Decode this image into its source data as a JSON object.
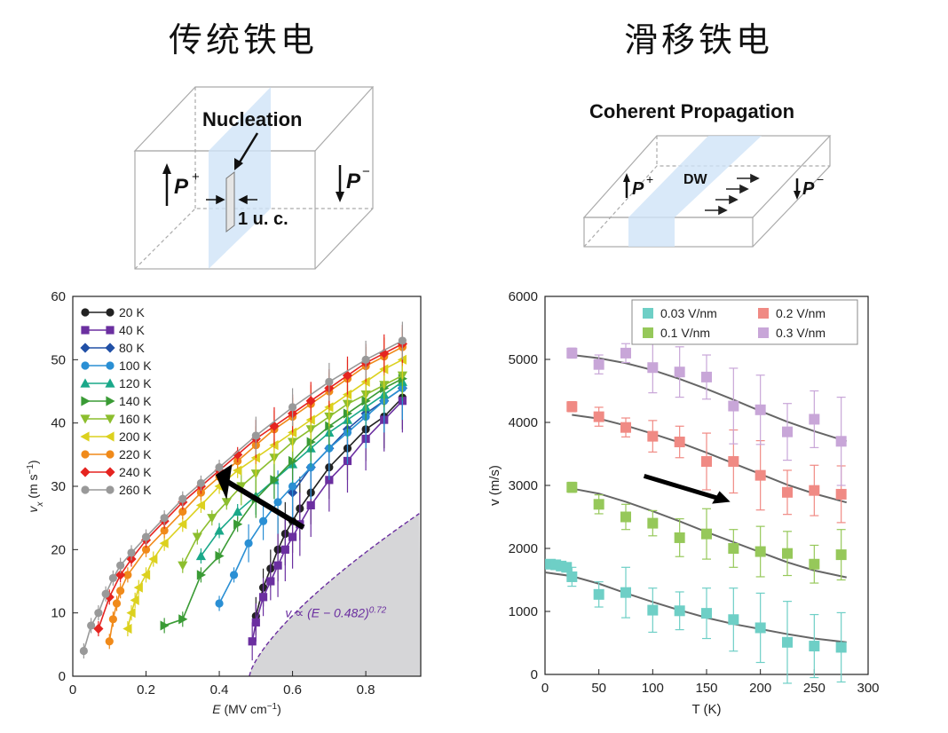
{
  "titles": {
    "left": "传统铁电",
    "right": "滑移铁电"
  },
  "schematic_left": {
    "heading": "Nucleation",
    "p_plus": "P",
    "p_plus_sup": "+",
    "p_minus": "P",
    "p_minus_sup": "−",
    "width_label": "1 u. c."
  },
  "schematic_right": {
    "heading": "Coherent Propagation",
    "p_plus": "P",
    "p_plus_sup": "+",
    "p_minus": "P",
    "p_minus_sup": "−",
    "dw_label": "DW"
  },
  "chart_data": [
    {
      "type": "line",
      "xlabel_main": "E",
      "xlabel_unit": " (MV cm",
      "xlabel_exp": "−1",
      "xlabel_close": ")",
      "ylabel_main": "v",
      "ylabel_sub": "x",
      "ylabel_unit": " (m s",
      "ylabel_exp": "−1",
      "ylabel_close": ")",
      "xlim": [
        0,
        0.95
      ],
      "ylim": [
        0,
        60
      ],
      "xticks": [
        0,
        0.2,
        0.4,
        0.6,
        0.8
      ],
      "xtick_labels": [
        "0",
        "0.2",
        "0.4",
        "0.6",
        "0.8"
      ],
      "yticks": [
        0,
        10,
        20,
        30,
        40,
        50,
        60
      ],
      "fit_label": "v ∝ (E − 0.482)",
      "fit_exp": "0.72",
      "legend_position": "top-left",
      "series": [
        {
          "name": "20 K",
          "color": "#222222",
          "marker": "circle",
          "x": [
            0.5,
            0.52,
            0.54,
            0.56,
            0.58,
            0.6,
            0.62,
            0.65,
            0.7,
            0.75,
            0.8,
            0.85,
            0.9
          ],
          "y": [
            9.5,
            14,
            17,
            20,
            22.5,
            24.5,
            26.5,
            29,
            33,
            36,
            39,
            41,
            44
          ]
        },
        {
          "name": "40 K",
          "color": "#6b2fa0",
          "marker": "square",
          "x": [
            0.49,
            0.5,
            0.52,
            0.54,
            0.56,
            0.58,
            0.6,
            0.62,
            0.65,
            0.7,
            0.75,
            0.8,
            0.85,
            0.9
          ],
          "y": [
            5.5,
            8.5,
            12.5,
            15,
            17.5,
            20,
            22,
            24,
            27,
            31,
            34,
            37.5,
            40.5,
            43.5
          ]
        },
        {
          "name": "80 K",
          "color": "#2150a6",
          "marker": "diamond",
          "x": [
            0.6,
            0.65,
            0.7,
            0.75,
            0.8,
            0.85,
            0.9
          ],
          "y": [
            29,
            33,
            36,
            39,
            41.5,
            43.5,
            45.5
          ]
        },
        {
          "name": "100 K",
          "color": "#2a8fd4",
          "marker": "circle",
          "x": [
            0.4,
            0.44,
            0.48,
            0.52,
            0.56,
            0.6,
            0.65,
            0.7,
            0.75,
            0.8,
            0.85,
            0.9
          ],
          "y": [
            11.5,
            16,
            21,
            24.5,
            27.5,
            30,
            33,
            36,
            38.5,
            41,
            43.5,
            45.5
          ]
        },
        {
          "name": "120 K",
          "color": "#1aa889",
          "marker": "triangle-up",
          "x": [
            0.35,
            0.4,
            0.45,
            0.5,
            0.55,
            0.6,
            0.65,
            0.7,
            0.75,
            0.8,
            0.85,
            0.9
          ],
          "y": [
            19,
            23,
            26,
            28.5,
            31,
            33.5,
            36,
            38.5,
            40.5,
            42.5,
            44.5,
            46.5
          ]
        },
        {
          "name": "140 K",
          "color": "#3a9b35",
          "marker": "triangle-right",
          "x": [
            0.25,
            0.3,
            0.35,
            0.4,
            0.45,
            0.5,
            0.55,
            0.6,
            0.65,
            0.7,
            0.75,
            0.8,
            0.85,
            0.9
          ],
          "y": [
            8,
            9,
            16,
            19,
            24,
            28,
            31,
            34,
            37,
            39.5,
            41.5,
            43.5,
            45.5,
            47
          ]
        },
        {
          "name": "160 K",
          "color": "#8cbe2e",
          "marker": "triangle-down",
          "x": [
            0.3,
            0.34,
            0.38,
            0.42,
            0.46,
            0.5,
            0.55,
            0.6,
            0.65,
            0.7,
            0.75,
            0.8,
            0.85,
            0.9
          ],
          "y": [
            17.5,
            22,
            25,
            27.5,
            30,
            32,
            34.5,
            37,
            39,
            41,
            43,
            44.5,
            46,
            47.5
          ]
        },
        {
          "name": "200 K",
          "color": "#dcd11e",
          "marker": "triangle-left",
          "x": [
            0.15,
            0.16,
            0.17,
            0.18,
            0.2,
            0.22,
            0.25,
            0.3,
            0.35,
            0.4,
            0.45,
            0.5,
            0.55,
            0.6,
            0.65,
            0.7,
            0.75,
            0.8,
            0.85,
            0.9
          ],
          "y": [
            7.5,
            10,
            12,
            14,
            16,
            18.5,
            21,
            24,
            27,
            30,
            32.5,
            34.5,
            36.5,
            38.5,
            40.5,
            42.5,
            44.5,
            46.5,
            48.5,
            50
          ]
        },
        {
          "name": "220 K",
          "color": "#f08a1a",
          "marker": "circle",
          "x": [
            0.1,
            0.11,
            0.12,
            0.13,
            0.15,
            0.2,
            0.25,
            0.3,
            0.35,
            0.4,
            0.45,
            0.5,
            0.55,
            0.6,
            0.65,
            0.7,
            0.75,
            0.8,
            0.85,
            0.9
          ],
          "y": [
            5.5,
            9,
            11.5,
            13.5,
            16,
            20,
            23,
            26,
            29,
            31.5,
            34,
            36.5,
            39,
            41,
            43,
            45,
            47,
            49,
            50.5,
            52
          ]
        },
        {
          "name": "240 K",
          "color": "#e52420",
          "marker": "diamond",
          "x": [
            0.07,
            0.1,
            0.13,
            0.16,
            0.2,
            0.25,
            0.3,
            0.35,
            0.4,
            0.45,
            0.5,
            0.55,
            0.6,
            0.65,
            0.7,
            0.75,
            0.8,
            0.85,
            0.9
          ],
          "y": [
            7.5,
            12.5,
            16,
            18.5,
            21.5,
            24.5,
            27.5,
            30,
            32.5,
            35,
            37.5,
            39.5,
            41.5,
            43.5,
            45.5,
            47.5,
            49.5,
            51,
            52.5
          ]
        },
        {
          "name": "260 K",
          "color": "#999999",
          "marker": "circle",
          "x": [
            0.03,
            0.05,
            0.07,
            0.09,
            0.11,
            0.13,
            0.16,
            0.2,
            0.25,
            0.3,
            0.35,
            0.4,
            0.5,
            0.6,
            0.7,
            0.8,
            0.9
          ],
          "y": [
            4,
            8,
            10,
            13,
            15.5,
            17.5,
            19.5,
            22,
            25,
            28,
            30.5,
            33,
            38,
            42.5,
            46.5,
            50,
            53
          ]
        }
      ]
    },
    {
      "type": "scatter",
      "xlabel": "T (K)",
      "ylabel": "v (m/s)",
      "xlim": [
        0,
        300
      ],
      "ylim": [
        0,
        6000
      ],
      "xticks": [
        0,
        50,
        100,
        150,
        200,
        250,
        300
      ],
      "yticks": [
        0,
        1000,
        2000,
        3000,
        4000,
        5000,
        6000
      ],
      "legend_position": "top-right",
      "series": [
        {
          "name": "0.03 V/nm",
          "color": "#6ecfc6",
          "x": [
            5,
            10,
            15,
            20,
            25,
            50,
            75,
            100,
            125,
            150,
            175,
            200,
            225,
            250,
            275
          ],
          "y": [
            1750,
            1740,
            1720,
            1700,
            1550,
            1270,
            1300,
            1020,
            1010,
            970,
            870,
            740,
            510,
            450,
            430
          ],
          "err": [
            60,
            60,
            60,
            60,
            150,
            200,
            400,
            350,
            300,
            400,
            500,
            550,
            650,
            500,
            550
          ],
          "fit": [
            [
              0,
              1620
            ],
            [
              25,
              1560
            ],
            [
              50,
              1440
            ],
            [
              75,
              1290
            ],
            [
              100,
              1150
            ],
            [
              125,
              1020
            ],
            [
              150,
              900
            ],
            [
              175,
              800
            ],
            [
              200,
              720
            ],
            [
              225,
              640
            ],
            [
              250,
              570
            ],
            [
              280,
              510
            ]
          ]
        },
        {
          "name": "0.1 V/nm",
          "color": "#96c85a",
          "x": [
            25,
            50,
            75,
            100,
            125,
            150,
            175,
            200,
            225,
            250,
            275
          ],
          "y": [
            2970,
            2700,
            2500,
            2400,
            2170,
            2230,
            2000,
            1950,
            1920,
            1750,
            1900
          ],
          "err": [
            80,
            150,
            200,
            200,
            300,
            400,
            300,
            400,
            350,
            300,
            400
          ],
          "fit": [
            [
              25,
              2950
            ],
            [
              50,
              2870
            ],
            [
              75,
              2740
            ],
            [
              100,
              2590
            ],
            [
              125,
              2430
            ],
            [
              150,
              2260
            ],
            [
              175,
              2100
            ],
            [
              200,
              1940
            ],
            [
              225,
              1780
            ],
            [
              250,
              1650
            ],
            [
              280,
              1540
            ]
          ]
        },
        {
          "name": "0.2 V/nm",
          "color": "#f08a84",
          "x": [
            25,
            50,
            75,
            100,
            125,
            150,
            175,
            200,
            225,
            250,
            275
          ],
          "y": [
            4250,
            4090,
            3920,
            3780,
            3690,
            3380,
            3380,
            3160,
            2890,
            2920,
            2860
          ],
          "err": [
            80,
            150,
            150,
            250,
            250,
            450,
            500,
            550,
            350,
            400,
            450
          ],
          "fit": [
            [
              25,
              4120
            ],
            [
              50,
              4060
            ],
            [
              75,
              3950
            ],
            [
              100,
              3820
            ],
            [
              125,
              3680
            ],
            [
              150,
              3520
            ],
            [
              175,
              3350
            ],
            [
              200,
              3180
            ],
            [
              225,
              3010
            ],
            [
              250,
              2870
            ],
            [
              280,
              2730
            ]
          ]
        },
        {
          "name": "0.3 V/nm",
          "color": "#c8a6d8",
          "x": [
            25,
            50,
            75,
            100,
            125,
            150,
            175,
            200,
            225,
            250,
            275
          ],
          "y": [
            5100,
            4920,
            5100,
            4870,
            4800,
            4720,
            4260,
            4200,
            3850,
            4050,
            3700
          ],
          "err": [
            80,
            150,
            150,
            400,
            400,
            350,
            600,
            550,
            450,
            450,
            700
          ],
          "fit": [
            [
              25,
              5070
            ],
            [
              50,
              5020
            ],
            [
              75,
              4940
            ],
            [
              100,
              4830
            ],
            [
              125,
              4690
            ],
            [
              150,
              4530
            ],
            [
              175,
              4360
            ],
            [
              200,
              4180
            ],
            [
              225,
              4010
            ],
            [
              250,
              3860
            ],
            [
              280,
              3700
            ]
          ]
        }
      ]
    }
  ]
}
